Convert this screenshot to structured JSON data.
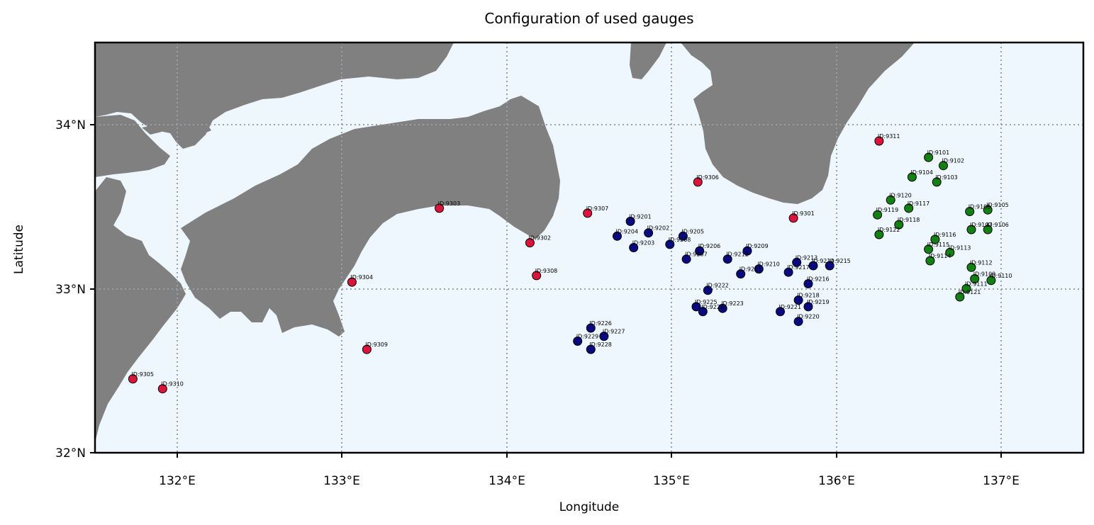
{
  "title": "Configuration of used gauges",
  "xlabel": "Longitude",
  "ylabel": "Latitude",
  "colors": {
    "sea": "#eef6fe",
    "land": "#808080",
    "group_9100": "#138013",
    "group_9200": "#0a0a80",
    "group_9300": "#dc143c"
  },
  "chart_data": {
    "type": "scatter",
    "title": "Configuration of used gauges",
    "xlabel": "Longitude",
    "ylabel": "Latitude",
    "xlim": [
      131.5,
      137.5
    ],
    "ylim": [
      32.0,
      34.5
    ],
    "grid": true,
    "x_ticks": [
      132,
      133,
      134,
      135,
      136,
      137
    ],
    "x_tick_labels": [
      "132°E",
      "133°E",
      "134°E",
      "135°E",
      "136°E",
      "137°E"
    ],
    "y_ticks": [
      32,
      33,
      34
    ],
    "y_tick_labels": [
      "32°N",
      "33°N",
      "34°N"
    ],
    "gauges": [
      {
        "id": "ID:9101",
        "lon": 136.56,
        "lat": 33.8,
        "group": "9100"
      },
      {
        "id": "ID:9102",
        "lon": 136.65,
        "lat": 33.75,
        "group": "9100"
      },
      {
        "id": "ID:9103",
        "lon": 136.61,
        "lat": 33.65,
        "group": "9100"
      },
      {
        "id": "ID:9104",
        "lon": 136.46,
        "lat": 33.68,
        "group": "9100"
      },
      {
        "id": "ID:9105",
        "lon": 136.92,
        "lat": 33.48,
        "group": "9100"
      },
      {
        "id": "ID:9106",
        "lon": 136.92,
        "lat": 33.36,
        "group": "9100"
      },
      {
        "id": "ID:9107",
        "lon": 136.82,
        "lat": 33.36,
        "group": "9100"
      },
      {
        "id": "ID:9108",
        "lon": 136.81,
        "lat": 33.47,
        "group": "9100"
      },
      {
        "id": "ID:9109",
        "lon": 136.84,
        "lat": 33.06,
        "group": "9100"
      },
      {
        "id": "ID:9110",
        "lon": 136.94,
        "lat": 33.05,
        "group": "9100"
      },
      {
        "id": "ID:9111",
        "lon": 136.79,
        "lat": 33.0,
        "group": "9100"
      },
      {
        "id": "ID:9112",
        "lon": 136.82,
        "lat": 33.13,
        "group": "9100"
      },
      {
        "id": "ID:9113",
        "lon": 136.69,
        "lat": 33.22,
        "group": "9100"
      },
      {
        "id": "ID:9114",
        "lon": 136.57,
        "lat": 33.17,
        "group": "9100"
      },
      {
        "id": "ID:9115",
        "lon": 136.56,
        "lat": 33.24,
        "group": "9100"
      },
      {
        "id": "ID:9116",
        "lon": 136.6,
        "lat": 33.3,
        "group": "9100"
      },
      {
        "id": "ID:9117",
        "lon": 136.44,
        "lat": 33.49,
        "group": "9100"
      },
      {
        "id": "ID:9118",
        "lon": 136.38,
        "lat": 33.39,
        "group": "9100"
      },
      {
        "id": "ID:9119",
        "lon": 136.25,
        "lat": 33.45,
        "group": "9100"
      },
      {
        "id": "ID:9120",
        "lon": 136.33,
        "lat": 33.54,
        "group": "9100"
      },
      {
        "id": "ID:9121",
        "lon": 136.75,
        "lat": 32.95,
        "group": "9100"
      },
      {
        "id": "ID:9122",
        "lon": 136.26,
        "lat": 33.33,
        "group": "9100"
      },
      {
        "id": "ID:9201",
        "lon": 134.75,
        "lat": 33.41,
        "group": "9200"
      },
      {
        "id": "ID:9202",
        "lon": 134.86,
        "lat": 33.34,
        "group": "9200"
      },
      {
        "id": "ID:9203",
        "lon": 134.77,
        "lat": 33.25,
        "group": "9200"
      },
      {
        "id": "ID:9204",
        "lon": 134.67,
        "lat": 33.32,
        "group": "9200"
      },
      {
        "id": "ID:9205",
        "lon": 135.07,
        "lat": 33.32,
        "group": "9200"
      },
      {
        "id": "ID:9206",
        "lon": 135.17,
        "lat": 33.23,
        "group": "9200"
      },
      {
        "id": "ID:9207",
        "lon": 135.09,
        "lat": 33.18,
        "group": "9200"
      },
      {
        "id": "ID:9208",
        "lon": 134.99,
        "lat": 33.27,
        "group": "9200"
      },
      {
        "id": "ID:9209",
        "lon": 135.46,
        "lat": 33.23,
        "group": "9200"
      },
      {
        "id": "ID:9210",
        "lon": 135.53,
        "lat": 33.12,
        "group": "9200"
      },
      {
        "id": "ID:9211",
        "lon": 135.42,
        "lat": 33.09,
        "group": "9200"
      },
      {
        "id": "ID:9212",
        "lon": 135.34,
        "lat": 33.18,
        "group": "9200"
      },
      {
        "id": "ID:9213",
        "lon": 135.76,
        "lat": 33.16,
        "group": "9200"
      },
      {
        "id": "ID:9214",
        "lon": 135.86,
        "lat": 33.14,
        "group": "9200"
      },
      {
        "id": "ID:9215",
        "lon": 135.96,
        "lat": 33.14,
        "group": "9200"
      },
      {
        "id": "ID:9216",
        "lon": 135.83,
        "lat": 33.03,
        "group": "9200"
      },
      {
        "id": "ID:9217",
        "lon": 135.71,
        "lat": 33.1,
        "group": "9200"
      },
      {
        "id": "ID:9218",
        "lon": 135.77,
        "lat": 32.93,
        "group": "9200"
      },
      {
        "id": "ID:9219",
        "lon": 135.83,
        "lat": 32.89,
        "group": "9200"
      },
      {
        "id": "ID:9220",
        "lon": 135.77,
        "lat": 32.8,
        "group": "9200"
      },
      {
        "id": "ID:9221",
        "lon": 135.66,
        "lat": 32.86,
        "group": "9200"
      },
      {
        "id": "ID:9222",
        "lon": 135.22,
        "lat": 32.99,
        "group": "9200"
      },
      {
        "id": "ID:9223",
        "lon": 135.31,
        "lat": 32.88,
        "group": "9200"
      },
      {
        "id": "ID:9224",
        "lon": 135.19,
        "lat": 32.86,
        "group": "9200"
      },
      {
        "id": "ID:9225",
        "lon": 135.15,
        "lat": 32.89,
        "group": "9200"
      },
      {
        "id": "ID:9226",
        "lon": 134.51,
        "lat": 32.76,
        "group": "9200"
      },
      {
        "id": "ID:9227",
        "lon": 134.59,
        "lat": 32.71,
        "group": "9200"
      },
      {
        "id": "ID:9228",
        "lon": 134.51,
        "lat": 32.63,
        "group": "9200"
      },
      {
        "id": "ID:9229",
        "lon": 134.43,
        "lat": 32.68,
        "group": "9200"
      },
      {
        "id": "ID:9301",
        "lon": 135.74,
        "lat": 33.43,
        "group": "9300"
      },
      {
        "id": "ID:9302",
        "lon": 134.14,
        "lat": 33.28,
        "group": "9300"
      },
      {
        "id": "ID:9303",
        "lon": 133.59,
        "lat": 33.49,
        "group": "9300"
      },
      {
        "id": "ID:9304",
        "lon": 133.06,
        "lat": 33.04,
        "group": "9300"
      },
      {
        "id": "ID:9305",
        "lon": 131.73,
        "lat": 32.45,
        "group": "9300"
      },
      {
        "id": "ID:9306",
        "lon": 135.16,
        "lat": 33.65,
        "group": "9300"
      },
      {
        "id": "ID:9307",
        "lon": 134.49,
        "lat": 33.46,
        "group": "9300"
      },
      {
        "id": "ID:9308",
        "lon": 134.18,
        "lat": 33.08,
        "group": "9300"
      },
      {
        "id": "ID:9309",
        "lon": 133.15,
        "lat": 32.63,
        "group": "9300"
      },
      {
        "id": "ID:9310",
        "lon": 131.91,
        "lat": 32.39,
        "group": "9300"
      },
      {
        "id": "ID:9311",
        "lon": 136.26,
        "lat": 33.9,
        "group": "9300"
      }
    ]
  }
}
